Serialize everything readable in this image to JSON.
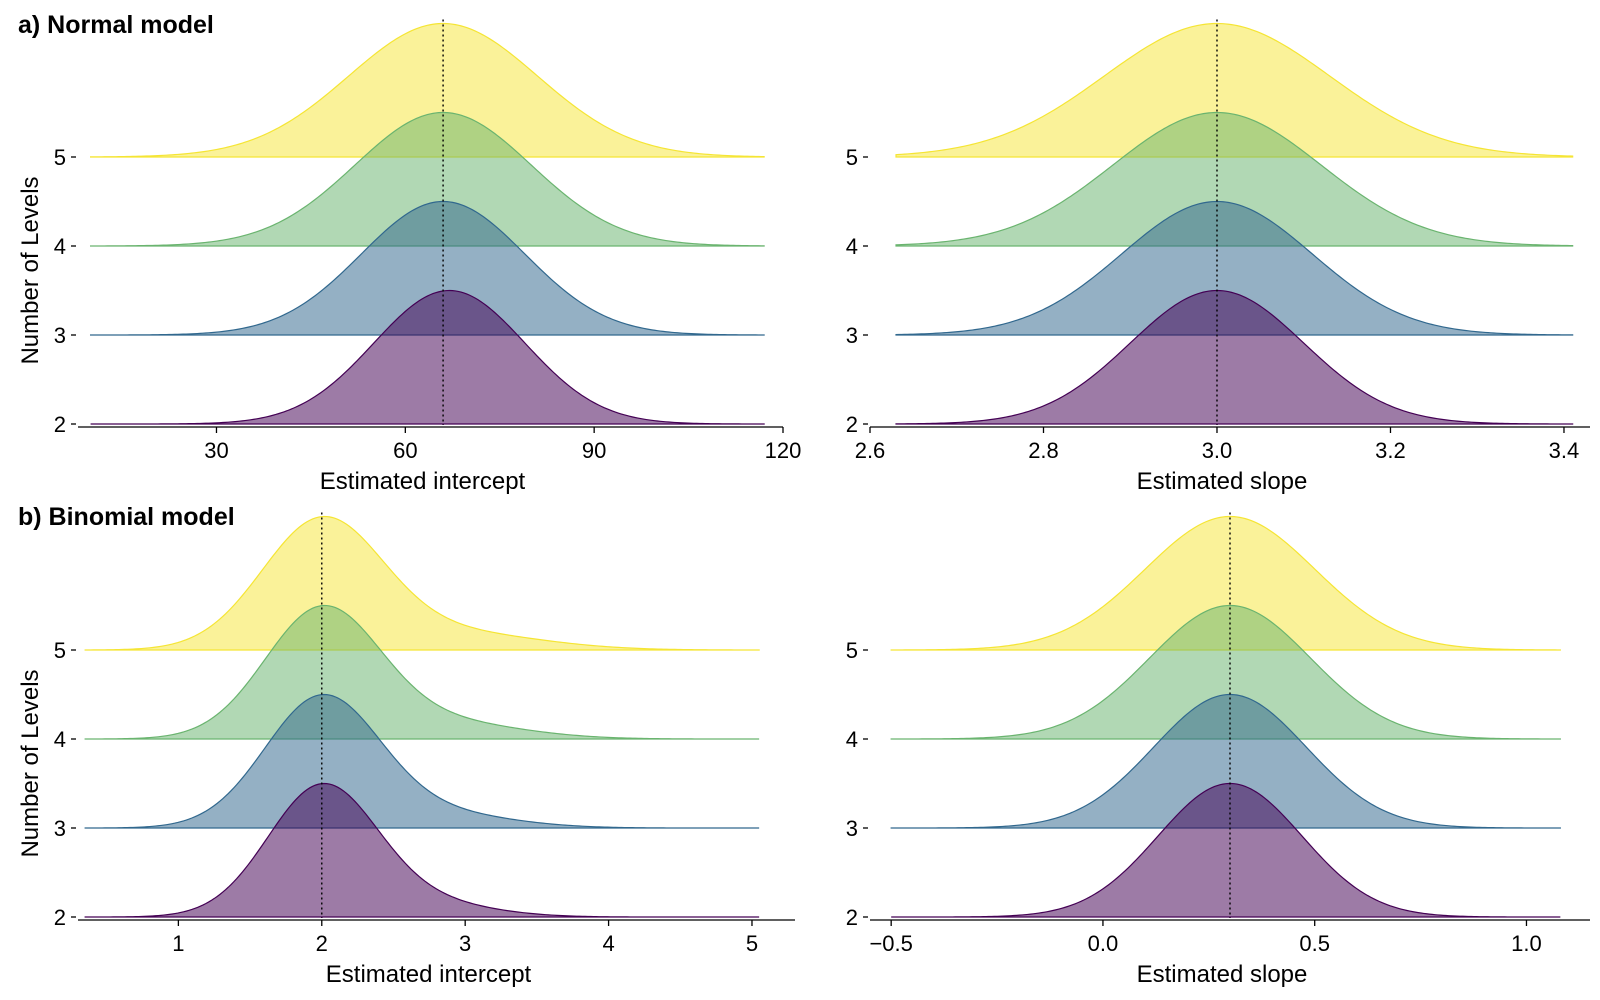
{
  "colors": {
    "levels": [
      "#440154",
      "#31688e",
      "#6ab46f",
      "#f5e534"
    ]
  },
  "panel_titles": {
    "a": "a) Normal model",
    "b": "b) Binomial model"
  },
  "chart_data": [
    {
      "type": "area",
      "chart": "ridgeline",
      "row": "a",
      "title": "a) Normal model",
      "xlabel": "Estimated intercept",
      "ylabel": "Number of Levels",
      "xlim": [
        8,
        120
      ],
      "x_domain": [
        10,
        117
      ],
      "xticks": [
        30,
        60,
        90,
        120
      ],
      "xtick_labels": [
        "30",
        "60",
        "90",
        "120"
      ],
      "yticks": [
        2,
        3,
        4,
        5
      ],
      "ytick_labels": [
        "2",
        "3",
        "4",
        "5"
      ],
      "reference_line": 66,
      "series": [
        {
          "level": 2,
          "components": [
            {
              "mu": 67,
              "sigma": 12,
              "w": 1.0
            }
          ],
          "peak": 1.5
        },
        {
          "level": 3,
          "components": [
            {
              "mu": 66,
              "sigma": 13,
              "w": 1.0
            }
          ],
          "peak": 1.5
        },
        {
          "level": 4,
          "components": [
            {
              "mu": 66,
              "sigma": 14,
              "w": 1.0
            }
          ],
          "peak": 1.5
        },
        {
          "level": 5,
          "components": [
            {
              "mu": 66,
              "sigma": 15,
              "w": 1.0
            }
          ],
          "peak": 1.5
        }
      ]
    },
    {
      "type": "area",
      "chart": "ridgeline",
      "row": "a",
      "title": "",
      "xlabel": "Estimated slope",
      "ylabel": "",
      "xlim": [
        2.6,
        3.43
      ],
      "x_domain": [
        2.63,
        3.41
      ],
      "xticks": [
        2.6,
        2.8,
        3.0,
        3.2,
        3.4
      ],
      "xtick_labels": [
        "2.6",
        "2.8",
        "3.0",
        "3.2",
        "3.4"
      ],
      "yticks": [
        2,
        3,
        4,
        5
      ],
      "ytick_labels": [
        "2",
        "3",
        "4",
        "5"
      ],
      "reference_line": 3.0,
      "series": [
        {
          "level": 2,
          "components": [
            {
              "mu": 3.0,
              "sigma": 0.1,
              "w": 1.0
            }
          ],
          "peak": 1.5
        },
        {
          "level": 3,
          "components": [
            {
              "mu": 3.0,
              "sigma": 0.11,
              "w": 1.0
            }
          ],
          "peak": 1.5
        },
        {
          "level": 4,
          "components": [
            {
              "mu": 3.0,
              "sigma": 0.12,
              "w": 1.0
            }
          ],
          "peak": 1.5
        },
        {
          "level": 5,
          "components": [
            {
              "mu": 3.0,
              "sigma": 0.13,
              "w": 1.0
            }
          ],
          "peak": 1.5
        }
      ]
    },
    {
      "type": "area",
      "chart": "ridgeline",
      "row": "b",
      "title": "b) Binomial model",
      "xlabel": "Estimated intercept",
      "ylabel": "Number of Levels",
      "xlim": [
        0.3,
        5.3
      ],
      "x_domain": [
        0.35,
        5.05
      ],
      "xticks": [
        1,
        2,
        3,
        4,
        5
      ],
      "xtick_labels": [
        "1",
        "2",
        "3",
        "4",
        "5"
      ],
      "yticks": [
        2,
        3,
        4,
        5
      ],
      "ytick_labels": [
        "2",
        "3",
        "4",
        "5"
      ],
      "reference_line": 2.0,
      "series": [
        {
          "level": 2,
          "components": [
            {
              "mu": 2.0,
              "sigma": 0.38,
              "w": 0.9
            },
            {
              "mu": 2.7,
              "sigma": 0.45,
              "w": 0.1
            }
          ],
          "peak": 1.5
        },
        {
          "level": 3,
          "components": [
            {
              "mu": 2.0,
              "sigma": 0.4,
              "w": 0.9
            },
            {
              "mu": 2.8,
              "sigma": 0.5,
              "w": 0.1
            }
          ],
          "peak": 1.5
        },
        {
          "level": 4,
          "components": [
            {
              "mu": 2.0,
              "sigma": 0.4,
              "w": 0.88
            },
            {
              "mu": 2.8,
              "sigma": 0.55,
              "w": 0.12
            }
          ],
          "peak": 1.5
        },
        {
          "level": 5,
          "components": [
            {
              "mu": 2.0,
              "sigma": 0.42,
              "w": 0.88
            },
            {
              "mu": 2.9,
              "sigma": 0.6,
              "w": 0.12
            }
          ],
          "peak": 1.5
        }
      ]
    },
    {
      "type": "area",
      "chart": "ridgeline",
      "row": "b",
      "title": "",
      "xlabel": "Estimated slope",
      "ylabel": "",
      "xlim": [
        -0.55,
        1.15
      ],
      "x_domain": [
        -0.5,
        1.08
      ],
      "xticks": [
        -0.5,
        0.0,
        0.5,
        1.0
      ],
      "xtick_labels": [
        "−0.5",
        "0.0",
        "0.5",
        "1.0"
      ],
      "yticks": [
        2,
        3,
        4,
        5
      ],
      "ytick_labels": [
        "2",
        "3",
        "4",
        "5"
      ],
      "reference_line": 0.3,
      "series": [
        {
          "level": 2,
          "components": [
            {
              "mu": 0.3,
              "sigma": 0.17,
              "w": 1.0
            }
          ],
          "peak": 1.5
        },
        {
          "level": 3,
          "components": [
            {
              "mu": 0.3,
              "sigma": 0.18,
              "w": 1.0
            }
          ],
          "peak": 1.5
        },
        {
          "level": 4,
          "components": [
            {
              "mu": 0.3,
              "sigma": 0.19,
              "w": 1.0
            }
          ],
          "peak": 1.5
        },
        {
          "level": 5,
          "components": [
            {
              "mu": 0.3,
              "sigma": 0.2,
              "w": 1.0
            }
          ],
          "peak": 1.5
        }
      ]
    }
  ]
}
